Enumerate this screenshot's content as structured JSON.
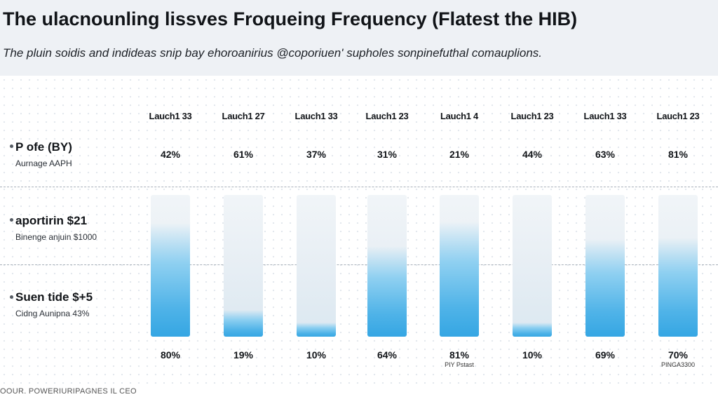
{
  "chart_data": {
    "type": "table",
    "title": "The ulacnounling lissves Froqueing Frequency (Flatest the HIB)",
    "subtitle": "The pluin soidis and indideas snip bay ehoroanirius @coporiuen' supholes sonpinefuthal comauplions.",
    "categories": [
      "Lauch1 33",
      "Lauch1 27",
      "Lauch1 33",
      "Lauch1 23",
      "Lauch1 4",
      "Lauch1 23",
      "Lauch1 33",
      "Lauch1 23"
    ],
    "rows": [
      {
        "label": "P ofe (BY)",
        "sublabel": "Aurnage AAPH"
      },
      {
        "label": "aportirin $21",
        "sublabel": "Binenge anjuin $1000"
      },
      {
        "label": "Suen tide $+5",
        "sublabel": "Cidng Aunipna 43%"
      }
    ],
    "series": [
      {
        "values": [
          42,
          61,
          37,
          31,
          21,
          44,
          63,
          81
        ],
        "labels": [
          "42%",
          "61%",
          "37%",
          "31%",
          "21%",
          "44%",
          "63%",
          "81%"
        ]
      },
      {
        "values": [
          80,
          19,
          10,
          64,
          81,
          10,
          69,
          70
        ],
        "labels": [
          "80%",
          "19%",
          "10%",
          "64%",
          "81%",
          "10%",
          "69%",
          "70%"
        ]
      }
    ],
    "ylim": [
      0,
      100
    ],
    "notes": [
      "",
      "",
      "",
      "",
      "PIY Pstast",
      "",
      "",
      "PINGA3300"
    ],
    "source": "OOUR. POWERIURIPAGNES IL CEO"
  },
  "colors": {
    "header_bg": "#eef1f5",
    "bar_fill": "#35a6e3",
    "bar_track": "#e7eef4"
  }
}
